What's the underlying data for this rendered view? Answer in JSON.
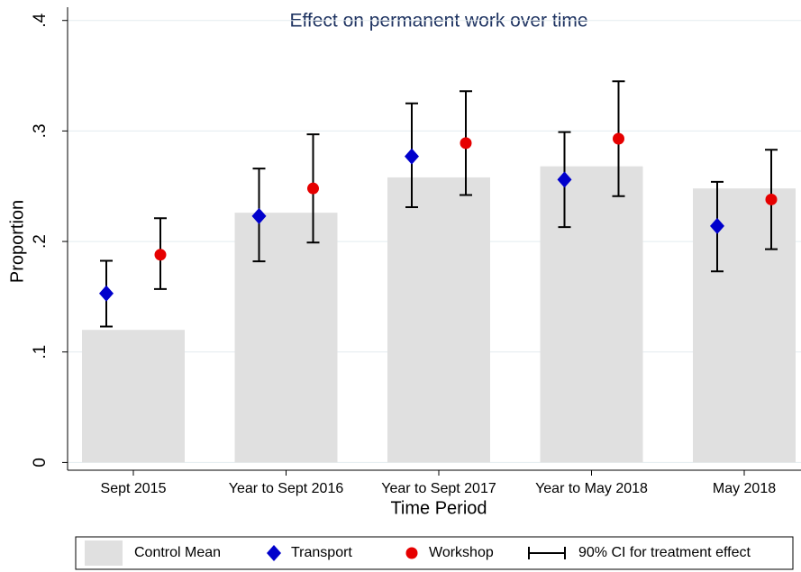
{
  "chart_data": {
    "type": "bar",
    "title": "Effect on permanent work over time",
    "xlabel": "Time Period",
    "ylabel": "Proportion",
    "categories": [
      "Sept 2015",
      "Year to Sept 2016",
      "Year to Sept 2017",
      "Year to May 2018",
      "May 2018"
    ],
    "series": [
      {
        "name": "Control Mean",
        "color": "#e0e0e0",
        "marker": "bar",
        "values": [
          0.12,
          0.226,
          0.258,
          0.268,
          0.248
        ]
      },
      {
        "name": "Transport",
        "color": "#0000cc",
        "marker": "diamond",
        "values": [
          0.153,
          0.223,
          0.277,
          0.256,
          0.214
        ],
        "ci_low": [
          0.123,
          0.182,
          0.231,
          0.213,
          0.173
        ],
        "ci_high": [
          0.1825,
          0.266,
          0.325,
          0.299,
          0.254
        ]
      },
      {
        "name": "Workshop",
        "color": "#e60000",
        "marker": "circle",
        "values": [
          0.188,
          0.248,
          0.289,
          0.293,
          0.238
        ],
        "ci_low": [
          0.157,
          0.199,
          0.242,
          0.241,
          0.193
        ],
        "ci_high": [
          0.221,
          0.297,
          0.336,
          0.345,
          0.283
        ]
      }
    ],
    "ci_label": "90% CI for treatment effect",
    "ylim": [
      -0.007,
      0.412
    ],
    "yticks": [
      0,
      {
        "value": 0.1,
        "label": ".1"
      },
      {
        "value": 0.2,
        "label": ".2"
      },
      {
        "value": 0.3,
        "label": ".3"
      },
      {
        "value": 0.4,
        "label": ".4"
      }
    ],
    "grid": true
  }
}
